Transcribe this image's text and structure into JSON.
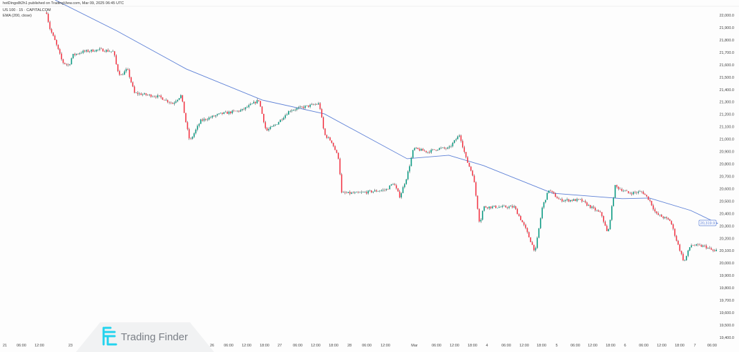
{
  "header": {
    "publisher": "hotDingo8t2h1 published on TradingView.com, Mar 09, 2025 06:45 UTC",
    "symbol": "US 100 · 15 · CAPITALCOM",
    "indicator": "EMA (200, close)"
  },
  "watermark": {
    "text": "Trading Finder",
    "color": "#22d3ee"
  },
  "colors": {
    "up": "#089981",
    "down": "#f23645",
    "wick": "#333333",
    "ema": "#5b7fd6",
    "background": "#fdfdfd"
  },
  "chart_data": {
    "type": "candlestick",
    "symbol": "US 100",
    "interval": "15",
    "ylim": [
      19400,
      22000
    ],
    "y_ticks": [
      "22,000.0",
      "21,900.0",
      "21,800.0",
      "21,700.0",
      "21,600.0",
      "21,500.0",
      "21,400.0",
      "21,300.0",
      "21,200.0",
      "21,100.0",
      "21,000.0",
      "20,900.0",
      "20,800.0",
      "20,700.0",
      "20,600.0",
      "20,500.0",
      "20,400.0",
      "20,300.0",
      "20,200.0",
      "20,100.0",
      "20,000.0",
      "19,900.0",
      "19,800.0",
      "19,700.0",
      "19,600.0",
      "19,500.0",
      "19,400.0"
    ],
    "x_ticks": [
      "21",
      "06:00",
      "12:00",
      "23",
      "26",
      "06:00",
      "12:00",
      "18:00",
      "27",
      "06:00",
      "12:00",
      "18:00",
      "28",
      "06:00",
      "12:00",
      "Mar",
      "06:00",
      "12:00",
      "18:00",
      "4",
      "06:00",
      "12:00",
      "18:00",
      "5",
      "06:00",
      "12:00",
      "18:00",
      "6",
      "06:00",
      "12:00",
      "18:00",
      "7",
      "06:00"
    ],
    "price_path": [
      [
        "Feb 21 14:30",
        22022
      ],
      [
        "Feb 21 15:30",
        21900
      ],
      [
        "Feb 21 17:30",
        21788
      ],
      [
        "Feb 21 20:00",
        21621
      ],
      [
        "Feb 21 22:15",
        21593
      ],
      [
        "Feb 24 00:00",
        21677
      ],
      [
        "Feb 24 03:30",
        21705
      ],
      [
        "Feb 24 09:30",
        21722
      ],
      [
        "Feb 24 14:15",
        21705
      ],
      [
        "Feb 24 15:30",
        21566
      ],
      [
        "Feb 24 16:45",
        21510
      ],
      [
        "Feb 24 19:00",
        21566
      ],
      [
        "Feb 24 21:30",
        21371
      ],
      [
        "Feb 25 06:00",
        21343
      ],
      [
        "Feb 25 10:45",
        21287
      ],
      [
        "Feb 25 13:45",
        21354
      ],
      [
        "Feb 25 15:30",
        21120
      ],
      [
        "Feb 25 16:45",
        20981
      ],
      [
        "Feb 25 20:30",
        21148
      ],
      [
        "Feb 26 03:30",
        21204
      ],
      [
        "Feb 26 10:45",
        21232
      ],
      [
        "Feb 26 16:45",
        21315
      ],
      [
        "Feb 26 19:15",
        21065
      ],
      [
        "Feb 26 22:45",
        21120
      ],
      [
        "Feb 27 03:30",
        21232
      ],
      [
        "Feb 27 08:30",
        21260
      ],
      [
        "Feb 27 13:45",
        21287
      ],
      [
        "Feb 27 15:30",
        21037
      ],
      [
        "Feb 27 18:00",
        20981
      ],
      [
        "Feb 27 20:30",
        20842
      ],
      [
        "Feb 27 21:30",
        20564
      ],
      [
        "Feb 28 03:00",
        20564
      ],
      [
        "Feb 28 12:45",
        20592
      ],
      [
        "Feb 28 15:15",
        20647
      ],
      [
        "Feb 28 17:30",
        20536
      ],
      [
        "Feb 28 20:00",
        20703
      ],
      [
        "Feb 28 22:15",
        20925
      ],
      [
        "Mar 3 03:30",
        20898
      ],
      [
        "Mar 3 07:15",
        20925
      ],
      [
        "Mar 3 10:45",
        20925
      ],
      [
        "Mar 3 14:30",
        21037
      ],
      [
        "Mar 3 16:45",
        20842
      ],
      [
        "Mar 3 19:15",
        20703
      ],
      [
        "Mar 3 21:30",
        20313
      ],
      [
        "Mar 3 22:45",
        20453
      ],
      [
        "Mar 4 03:30",
        20453
      ],
      [
        "Mar 4 09:30",
        20453
      ],
      [
        "Mar 4 13:15",
        20286
      ],
      [
        "Mar 4 16:45",
        20090
      ],
      [
        "Mar 4 19:15",
        20453
      ],
      [
        "Mar 4 21:30",
        20592
      ],
      [
        "Mar 5 01:00",
        20508
      ],
      [
        "Mar 5 08:15",
        20508
      ],
      [
        "Mar 5 11:45",
        20453
      ],
      [
        "Mar 5 15:30",
        20397
      ],
      [
        "Mar 5 17:45",
        20230
      ],
      [
        "Mar 5 20:15",
        20620
      ],
      [
        "Mar 6 01:15",
        20564
      ],
      [
        "Mar 6 06:00",
        20575
      ],
      [
        "Mar 6 08:30",
        20508
      ],
      [
        "Mar 6 10:45",
        20397
      ],
      [
        "Mar 6 15:45",
        20341
      ],
      [
        "Mar 6 18:00",
        20175
      ],
      [
        "Mar 6 20:30",
        20007
      ],
      [
        "Mar 6 22:45",
        20146
      ],
      [
        "Mar 7 03:30",
        20135
      ],
      [
        "Mar 7 07:00",
        20090
      ],
      [
        "Mar 7 08:00",
        20118
      ]
    ],
    "ema": {
      "name": "EMA (200, close)",
      "last_value": "20,319.9",
      "points": [
        [
          "Feb 21 17:30",
          22122
        ],
        [
          "Feb 24 15:30",
          21872
        ],
        [
          "Feb 25 15:30",
          21566
        ],
        [
          "Feb 26 18:00",
          21315
        ],
        [
          "Feb 27 15:30",
          21204
        ],
        [
          "Feb 28 20:00",
          20842
        ],
        [
          "Mar 3 10:45",
          20870
        ],
        [
          "Mar 3 22:45",
          20787
        ],
        [
          "Mar 4 22:45",
          20564
        ],
        [
          "Mar 5 22:45",
          20520
        ],
        [
          "Mar 6 08:30",
          20525
        ],
        [
          "Mar 6 22:45",
          20425
        ],
        [
          "Mar 7 08:00",
          20320
        ]
      ]
    }
  }
}
